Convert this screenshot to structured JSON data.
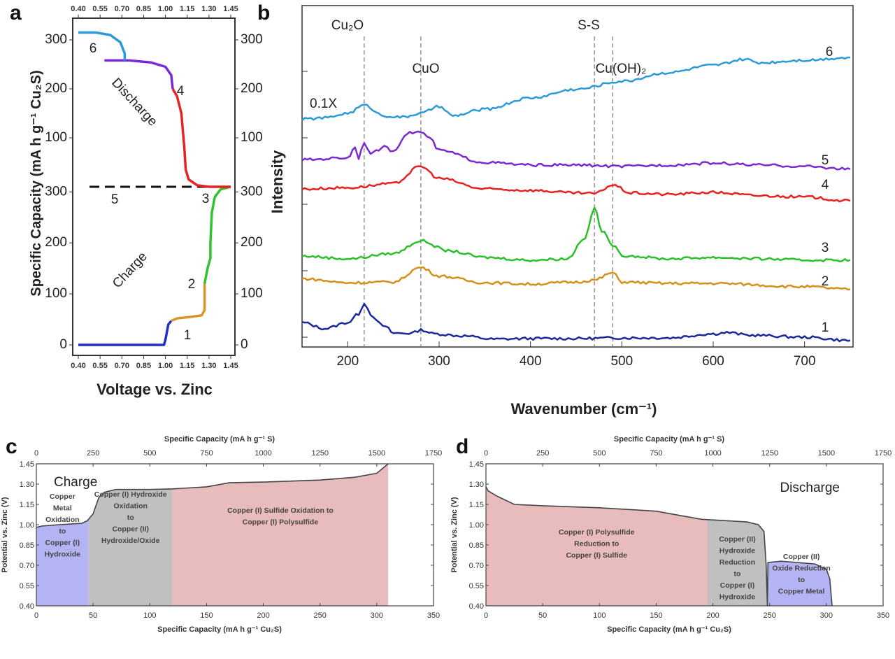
{
  "chart_data": [
    {
      "panel": "a",
      "type": "line",
      "xlabel": "Voltage vs. Zinc",
      "ylabel": "Specific Capacity (mA h g⁻¹ Cu₂S)",
      "xlim": [
        0.4,
        1.45
      ],
      "x_ticks": [
        "0.40",
        "0.55",
        "0.70",
        "0.85",
        "1.00",
        "1.15",
        "1.30",
        "1.45"
      ],
      "y_ticks_discharge": [
        "100",
        "200",
        "300"
      ],
      "y_ticks_charge": [
        "0",
        "100",
        "200",
        "300"
      ],
      "annotations": {
        "discharge": "Discharge",
        "charge": "Charge"
      },
      "divider": "dashed",
      "charge_segments": [
        {
          "name": "1",
          "color": "#1f2fc8",
          "points": [
            [
              0.4,
              0
            ],
            [
              0.9,
              0
            ],
            [
              0.99,
              0
            ],
            [
              1.0,
              10
            ],
            [
              1.02,
              40
            ],
            [
              1.04,
              47
            ]
          ]
        },
        {
          "name": "2",
          "color": "#d8962a",
          "points": [
            [
              1.04,
              47
            ],
            [
              1.08,
              52
            ],
            [
              1.18,
              55
            ],
            [
              1.25,
              58
            ],
            [
              1.27,
              68
            ],
            [
              1.27,
              100
            ],
            [
              1.27,
              120
            ]
          ]
        },
        {
          "name": "3",
          "color": "#2fc42f",
          "points": [
            [
              1.27,
              120
            ],
            [
              1.29,
              150
            ],
            [
              1.31,
              170
            ],
            [
              1.31,
              200
            ],
            [
              1.32,
              260
            ],
            [
              1.34,
              290
            ],
            [
              1.38,
              305
            ],
            [
              1.45,
              310
            ]
          ]
        }
      ],
      "discharge_segments": [
        {
          "name": "4",
          "color": "#e82222",
          "points": [
            [
              1.45,
              0
            ],
            [
              1.3,
              0
            ],
            [
              1.22,
              3
            ],
            [
              1.16,
              15
            ],
            [
              1.14,
              35
            ],
            [
              1.13,
              80
            ],
            [
              1.11,
              150
            ],
            [
              1.08,
              185
            ],
            [
              1.05,
              200
            ]
          ]
        },
        {
          "name": "5",
          "color": "#7a2ad4",
          "points": [
            [
              1.05,
              200
            ],
            [
              1.04,
              228
            ],
            [
              1.0,
              245
            ],
            [
              0.9,
              254
            ],
            [
              0.75,
              258
            ],
            [
              0.58,
              258
            ]
          ]
        },
        {
          "name": "6",
          "color": "#2a9ad8",
          "points": [
            [
              0.72,
              258
            ],
            [
              0.72,
              272
            ],
            [
              0.69,
              295
            ],
            [
              0.62,
              310
            ],
            [
              0.52,
              315
            ],
            [
              0.4,
              315
            ]
          ]
        }
      ]
    },
    {
      "panel": "b",
      "type": "line",
      "xlabel": "Wavenumber (cm⁻¹)",
      "ylabel": "Intensity",
      "xlim": [
        150,
        750
      ],
      "x_ticks": [
        "200",
        "300",
        "400",
        "500",
        "600",
        "700"
      ],
      "y_ticks_count": 5,
      "scale_note": "0.1X",
      "reference_lines": [
        {
          "x": 218,
          "label": "Cu₂O"
        },
        {
          "x": 280,
          "label": "CuO"
        },
        {
          "x": 470,
          "label": "S-S"
        },
        {
          "x": 490,
          "label": "Cu(OH)₂"
        }
      ],
      "series": [
        {
          "name": "1",
          "color": "#1a2a9a",
          "points": [
            [
              150,
              0.22
            ],
            [
              175,
              0.13
            ],
            [
              200,
              0.22
            ],
            [
              212,
              0.35
            ],
            [
              218,
              0.52
            ],
            [
              225,
              0.35
            ],
            [
              235,
              0.2
            ],
            [
              242,
              0.15
            ],
            [
              250,
              0.06
            ],
            [
              270,
              0.06
            ],
            [
              280,
              0.11
            ],
            [
              295,
              0.05
            ],
            [
              325,
              0.02
            ],
            [
              360,
              -0.03
            ],
            [
              400,
              -0.02
            ],
            [
              450,
              -0.02
            ],
            [
              500,
              -0.01
            ],
            [
              550,
              -0.01
            ],
            [
              600,
              0.05
            ],
            [
              615,
              0.07
            ],
            [
              640,
              0.03
            ],
            [
              700,
              0.0
            ],
            [
              750,
              -0.05
            ]
          ]
        },
        {
          "name": "2",
          "color": "#d4901a",
          "points": [
            [
              150,
              0.88
            ],
            [
              200,
              0.82
            ],
            [
              250,
              0.83
            ],
            [
              280,
              1.05
            ],
            [
              300,
              0.92
            ],
            [
              350,
              0.82
            ],
            [
              400,
              0.8
            ],
            [
              450,
              0.83
            ],
            [
              470,
              0.86
            ],
            [
              490,
              0.97
            ],
            [
              500,
              0.83
            ],
            [
              550,
              0.81
            ],
            [
              600,
              0.81
            ],
            [
              700,
              0.76
            ],
            [
              750,
              0.72
            ]
          ]
        },
        {
          "name": "3",
          "color": "#2bc02b",
          "points": [
            [
              150,
              1.22
            ],
            [
              200,
              1.18
            ],
            [
              250,
              1.26
            ],
            [
              280,
              1.45
            ],
            [
              310,
              1.3
            ],
            [
              350,
              1.2
            ],
            [
              400,
              1.16
            ],
            [
              440,
              1.18
            ],
            [
              460,
              1.5
            ],
            [
              470,
              1.95
            ],
            [
              478,
              1.6
            ],
            [
              490,
              1.39
            ],
            [
              500,
              1.23
            ],
            [
              550,
              1.18
            ],
            [
              600,
              1.2
            ],
            [
              650,
              1.18
            ],
            [
              700,
              1.16
            ],
            [
              750,
              1.16
            ]
          ]
        },
        {
          "name": "4",
          "color": "#e82020",
          "points": [
            [
              150,
              2.23
            ],
            [
              200,
              2.25
            ],
            [
              250,
              2.31
            ],
            [
              280,
              2.57
            ],
            [
              300,
              2.39
            ],
            [
              350,
              2.23
            ],
            [
              400,
              2.21
            ],
            [
              450,
              2.17
            ],
            [
              470,
              2.16
            ],
            [
              490,
              2.29
            ],
            [
              510,
              2.17
            ],
            [
              550,
              2.15
            ],
            [
              600,
              2.18
            ],
            [
              650,
              2.13
            ],
            [
              700,
              2.11
            ],
            [
              750,
              2.05
            ]
          ]
        },
        {
          "name": "5",
          "color": "#7a2ad0",
          "points": [
            [
              150,
              2.67
            ],
            [
              200,
              2.7
            ],
            [
              208,
              2.86
            ],
            [
              212,
              2.7
            ],
            [
              218,
              2.94
            ],
            [
              225,
              2.76
            ],
            [
              240,
              2.86
            ],
            [
              250,
              2.8
            ],
            [
              265,
              3.07
            ],
            [
              280,
              3.09
            ],
            [
              290,
              2.99
            ],
            [
              300,
              2.81
            ],
            [
              350,
              2.63
            ],
            [
              400,
              2.59
            ],
            [
              450,
              2.59
            ],
            [
              500,
              2.57
            ],
            [
              550,
              2.59
            ],
            [
              600,
              2.62
            ],
            [
              650,
              2.59
            ],
            [
              700,
              2.57
            ],
            [
              750,
              2.53
            ]
          ]
        },
        {
          "name": "6",
          "color": "#2a9ad8",
          "points": [
            [
              150,
              3.28
            ],
            [
              175,
              3.3
            ],
            [
              200,
              3.37
            ],
            [
              218,
              3.49
            ],
            [
              240,
              3.33
            ],
            [
              260,
              3.31
            ],
            [
              280,
              3.37
            ],
            [
              300,
              3.47
            ],
            [
              315,
              3.33
            ],
            [
              350,
              3.43
            ],
            [
              400,
              3.6
            ],
            [
              450,
              3.73
            ],
            [
              500,
              3.85
            ],
            [
              550,
              3.98
            ],
            [
              600,
              4.09
            ],
            [
              635,
              4.18
            ],
            [
              650,
              4.13
            ],
            [
              700,
              4.17
            ],
            [
              750,
              4.21
            ]
          ]
        }
      ]
    },
    {
      "panel": "c",
      "type": "area",
      "title": "Charge",
      "xlabel": "Specific Capacity (mA h g⁻¹ Cu₂S)",
      "x2label": "Specific Capacity (mA h g⁻¹ S)",
      "ylabel": "Potential vs. Zinc (V)",
      "xlim": [
        0,
        350
      ],
      "x2lim": [
        0,
        1750
      ],
      "ylim": [
        0.4,
        1.45
      ],
      "x_ticks": [
        "0",
        "50",
        "100",
        "150",
        "200",
        "250",
        "300",
        "350"
      ],
      "x2_ticks": [
        "0",
        "250",
        "500",
        "750",
        "1000",
        "1250",
        "1500",
        "1750"
      ],
      "y_ticks": [
        "0.40",
        "0.55",
        "0.70",
        "0.85",
        "1.00",
        "1.15",
        "1.30",
        "1.45"
      ],
      "curve": [
        [
          0,
          0.98
        ],
        [
          5,
          0.99
        ],
        [
          20,
          1.0
        ],
        [
          40,
          1.01
        ],
        [
          45,
          1.03
        ],
        [
          50,
          1.08
        ],
        [
          55,
          1.2
        ],
        [
          60,
          1.24
        ],
        [
          70,
          1.26
        ],
        [
          100,
          1.26
        ],
        [
          120,
          1.265
        ],
        [
          150,
          1.28
        ],
        [
          170,
          1.31
        ],
        [
          200,
          1.315
        ],
        [
          250,
          1.33
        ],
        [
          280,
          1.35
        ],
        [
          300,
          1.38
        ],
        [
          310,
          1.45
        ]
      ],
      "regions": [
        {
          "from": 0,
          "to": 46,
          "color": "#b4b4f4",
          "label": [
            "Copper",
            "Metal",
            "Oxidation",
            "to",
            "Copper (I)",
            "Hydroxide"
          ]
        },
        {
          "from": 46,
          "to": 120,
          "color": "#c0c0c0",
          "label": [
            "Copper (I) Hydroxide",
            "Oxidation",
            "to",
            "Copper (II)",
            "Hydroxide/Oxide"
          ]
        },
        {
          "from": 120,
          "to": 310,
          "color": "#e8bcbc",
          "label": [
            "Copper (I) Sulfide Oxidation to",
            "Copper (I) Polysulfide"
          ]
        }
      ]
    },
    {
      "panel": "d",
      "type": "area",
      "title": "Discharge",
      "xlabel": "Specific Capacity (mA h g⁻¹ Cu₂S)",
      "x2label": "Specific Capacity (mA h g⁻¹ S)",
      "ylabel": "Potential vs. Zinc (V)",
      "xlim": [
        0,
        350
      ],
      "x2lim": [
        0,
        1750
      ],
      "ylim": [
        0.4,
        1.45
      ],
      "x_ticks": [
        "0",
        "50",
        "100",
        "150",
        "200",
        "250",
        "300",
        "350"
      ],
      "x2_ticks": [
        "0",
        "250",
        "500",
        "750",
        "1000",
        "1250",
        "1500",
        "1750"
      ],
      "y_ticks": [
        "0.40",
        "0.55",
        "0.70",
        "0.85",
        "1.00",
        "1.15",
        "1.30",
        "1.45"
      ],
      "curve": [
        [
          0,
          1.28
        ],
        [
          2,
          1.25
        ],
        [
          10,
          1.21
        ],
        [
          25,
          1.15
        ],
        [
          50,
          1.14
        ],
        [
          100,
          1.125
        ],
        [
          150,
          1.1
        ],
        [
          190,
          1.04
        ],
        [
          200,
          1.035
        ],
        [
          230,
          1.02
        ],
        [
          240,
          1.0
        ],
        [
          245,
          0.95
        ],
        [
          247,
          0.7
        ],
        [
          248,
          0.4
        ],
        [
          248.5,
          0.72
        ],
        [
          260,
          0.73
        ],
        [
          290,
          0.71
        ],
        [
          300,
          0.67
        ],
        [
          303,
          0.6
        ],
        [
          305,
          0.4
        ]
      ],
      "regions": [
        {
          "from": 0,
          "to": 195,
          "color": "#e8bcbc",
          "label": [
            "Copper (I) Polysulfide",
            "Reduction to",
            "Copper (I) Sulfide"
          ]
        },
        {
          "from": 195,
          "to": 248,
          "color": "#c0c0c0",
          "label": [
            "Copper (II)",
            "Hydroxide",
            "Reduction",
            "to",
            "Copper (I)",
            "Hydroxide"
          ]
        },
        {
          "from": 248.5,
          "to": 305,
          "color": "#b4b4f4",
          "label": [
            "Copper (II)",
            "Oxide Reduction",
            "to",
            "Copper Metal"
          ]
        }
      ]
    }
  ]
}
